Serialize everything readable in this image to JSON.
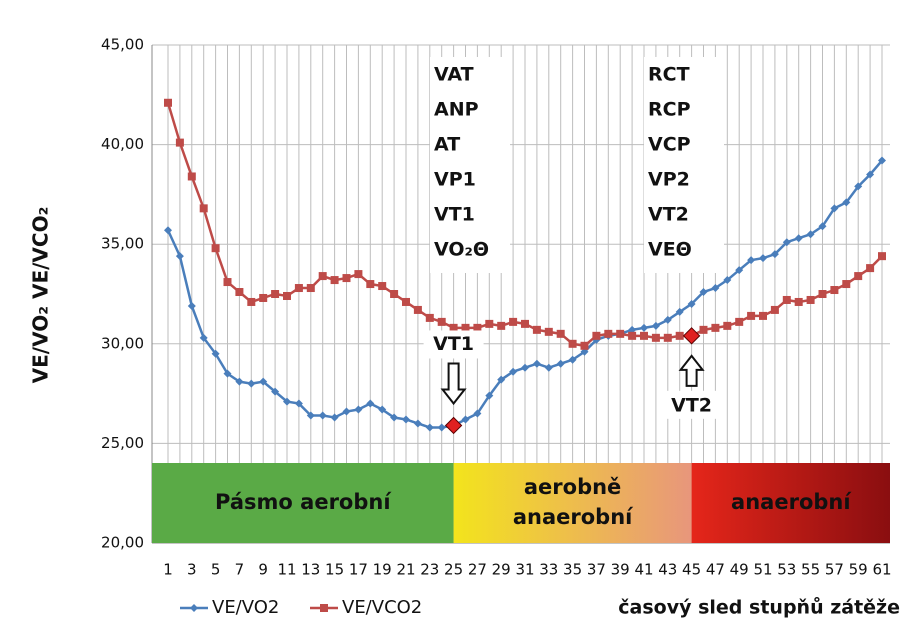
{
  "chart_data": {
    "type": "line",
    "y_label": "VE/VO₂   VE/VCO₂",
    "x_label": "časový sled stupňů zátěže",
    "categories": [
      1,
      null,
      3,
      null,
      5,
      null,
      7,
      null,
      9,
      null,
      11,
      null,
      13,
      null,
      15,
      null,
      17,
      null,
      19,
      null,
      21,
      null,
      23,
      null,
      25,
      null,
      27,
      null,
      29,
      null,
      31,
      null,
      33,
      null,
      35,
      null,
      37,
      null,
      39,
      null,
      41,
      null,
      43,
      null,
      45,
      null,
      47,
      null,
      49,
      null,
      51,
      null,
      53,
      null,
      55,
      null,
      57,
      null,
      59,
      null,
      61
    ],
    "series": [
      {
        "name": "VE/VO2",
        "color": "#4a7ebb",
        "marker": "diamond",
        "values": [
          35.7,
          34.4,
          31.9,
          30.3,
          29.5,
          28.5,
          28.1,
          28.0,
          28.1,
          27.6,
          27.1,
          27.0,
          26.4,
          26.4,
          26.3,
          26.6,
          26.7,
          27.0,
          26.7,
          26.3,
          26.2,
          26.0,
          25.8,
          25.8,
          25.9,
          26.2,
          26.5,
          27.4,
          28.2,
          28.6,
          28.8,
          29.0,
          28.8,
          29.0,
          29.2,
          29.6,
          30.2,
          30.4,
          30.5,
          30.7,
          30.8,
          30.9,
          31.2,
          31.6,
          32.0,
          32.6,
          32.8,
          33.2,
          33.7,
          34.2,
          34.3,
          34.5,
          35.1,
          35.3,
          35.5,
          35.9,
          36.8,
          37.1,
          37.9,
          38.5,
          39.2
        ]
      },
      {
        "name": "VE/VCO2",
        "color": "#be4b48",
        "marker": "square",
        "values": [
          42.1,
          40.1,
          38.4,
          36.8,
          34.8,
          33.1,
          32.6,
          32.1,
          32.3,
          32.5,
          32.4,
          32.8,
          32.8,
          33.4,
          33.2,
          33.3,
          33.5,
          33.0,
          32.9,
          32.5,
          32.1,
          31.7,
          31.3,
          31.1,
          30.8,
          30.8,
          30.8,
          31.0,
          30.9,
          31.1,
          31.0,
          30.7,
          30.6,
          30.5,
          30.0,
          29.9,
          30.4,
          30.5,
          30.5,
          30.4,
          30.4,
          30.3,
          30.3,
          30.4,
          30.4,
          30.7,
          30.8,
          30.9,
          31.1,
          31.4,
          31.4,
          31.7,
          32.2,
          32.1,
          32.2,
          32.5,
          32.7,
          33.0,
          33.4,
          33.8,
          34.4
        ]
      }
    ],
    "ylim": [
      20,
      45
    ],
    "yticks": [
      {
        "value": 20,
        "label": "20,00"
      },
      {
        "value": 25,
        "label": "25,00"
      },
      {
        "value": 30,
        "label": "30,00"
      },
      {
        "value": 35,
        "label": "35,00"
      },
      {
        "value": 40,
        "label": "40,00"
      },
      {
        "value": 45,
        "label": "45,00"
      }
    ],
    "grid": true,
    "legend": "bottom-left",
    "annotations": [
      {
        "text": "VT1",
        "series": 0,
        "index": 24,
        "arrow": "down",
        "color": "#e02020"
      },
      {
        "text": "VT2",
        "series": 1,
        "index": 44,
        "arrow": "up",
        "color": "#e02020"
      }
    ],
    "notes": [
      {
        "lines": [
          "VAT",
          "ANP",
          "AT",
          "VP1",
          "VT1",
          "VO₂Θ"
        ]
      },
      {
        "lines": [
          "RCT",
          "RCP",
          "VCP",
          "VP2",
          "VT2",
          "VEΘ"
        ]
      }
    ],
    "zones": [
      {
        "lines": [
          "Pásmo aerobní"
        ],
        "from": 0,
        "to": 24,
        "colors": [
          "#5aaa46",
          "#5aaa46"
        ]
      },
      {
        "lines": [
          "aerobně",
          "anaerobní"
        ],
        "from": 24,
        "to": 44,
        "colors": [
          "#f3e41c",
          "#e8967c"
        ]
      },
      {
        "lines": [
          "anaerobní"
        ],
        "from": 44,
        "to": 60,
        "colors": [
          "#e5261a",
          "#8a0e10"
        ]
      }
    ]
  }
}
